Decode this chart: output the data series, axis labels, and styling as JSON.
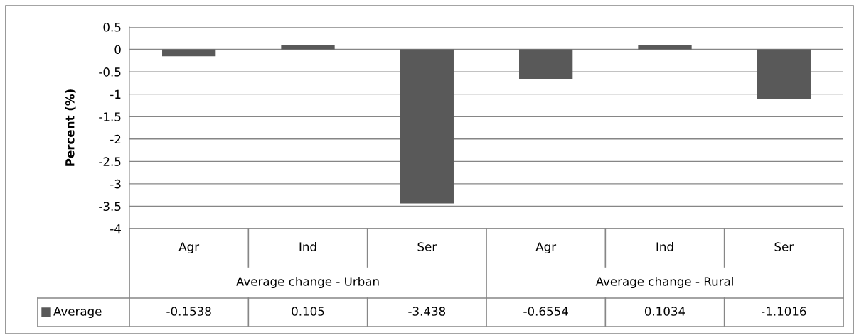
{
  "chart_data": {
    "type": "bar",
    "ylabel": "Percent (%)",
    "categories": [
      "Agr",
      "Ind",
      "Ser",
      "Agr",
      "Ind",
      "Ser"
    ],
    "annotations": [
      "Average change - Urban",
      "Average change - Rural"
    ],
    "series": [
      {
        "name": "Average",
        "color": "#595959",
        "values": [
          -0.1538,
          0.105,
          -3.438,
          -0.6554,
          0.1034,
          -1.1016
        ]
      }
    ],
    "ylim": [
      -4,
      0.5
    ],
    "yticks": [
      0.5,
      0,
      -0.5,
      -1,
      -1.5,
      -2,
      -2.5,
      -3,
      -3.5,
      -4
    ],
    "grid": "y",
    "data_labels": true
  }
}
